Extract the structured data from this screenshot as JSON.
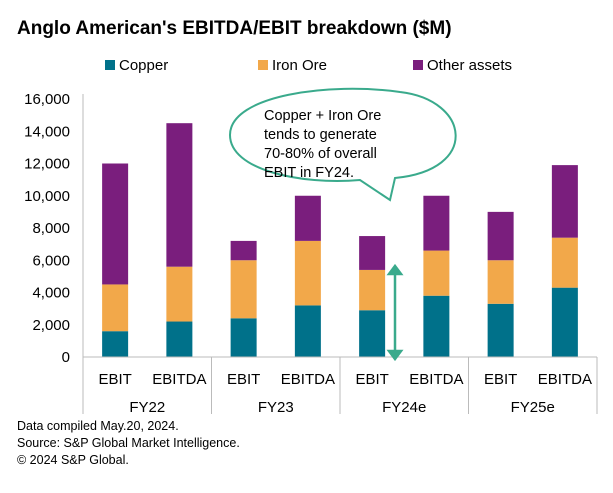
{
  "chart_data": {
    "type": "bar",
    "stacked": true,
    "title": "Anglo American's EBITDA/EBIT breakdown ($M)",
    "categories": [
      "EBIT",
      "EBITDA",
      "EBIT",
      "EBITDA",
      "EBIT",
      "EBITDA",
      "EBIT",
      "EBITDA"
    ],
    "groups": [
      "FY22",
      "FY23",
      "FY24e",
      "FY25e"
    ],
    "series": [
      {
        "name": "Copper",
        "color": "#00718a",
        "values": [
          1600,
          2200,
          2400,
          3200,
          2900,
          3800,
          3300,
          4300
        ]
      },
      {
        "name": "Iron Ore",
        "color": "#f2a84a",
        "values": [
          2900,
          3400,
          3600,
          4000,
          2500,
          2800,
          2700,
          3100
        ]
      },
      {
        "name": "Other assets",
        "color": "#7a1e7d",
        "values": [
          7500,
          8900,
          1200,
          2800,
          2100,
          3400,
          3000,
          4500
        ]
      }
    ],
    "ylim": [
      0,
      16000
    ],
    "yticks": [
      "0",
      "2,000",
      "4,000",
      "6,000",
      "8,000",
      "10,000",
      "12,000",
      "14,000",
      "16,000"
    ],
    "legend": "top",
    "grid": false,
    "annotation": {
      "text": [
        "Copper + Iron Ore",
        "tends to generate",
        "70-80% of overall",
        "EBIT in FY24."
      ],
      "color": "#3aaa8c"
    }
  },
  "footer": [
    "Data compiled May.20, 2024.",
    "Source: S&P Global Market Intelligence.",
    "© 2024 S&P Global."
  ]
}
